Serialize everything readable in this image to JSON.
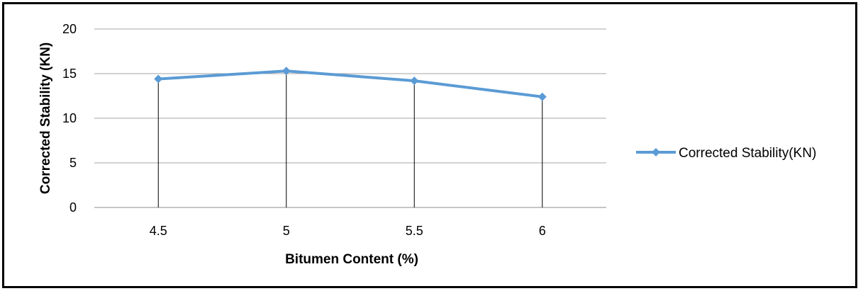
{
  "chart_data": {
    "type": "line",
    "title": "",
    "xlabel": "Bitumen Content (%)",
    "ylabel": "Corrected Stability (KN)",
    "categories": [
      "4.5",
      "5",
      "5.5",
      "6"
    ],
    "series": [
      {
        "name": "Corrected Stability(KN)",
        "values": [
          14.4,
          15.3,
          14.2,
          12.4
        ]
      }
    ],
    "yticks": [
      "0",
      "5",
      "10",
      "15",
      "20"
    ],
    "ylim": [
      0,
      20
    ],
    "grid": true,
    "drop_lines": true,
    "legend_position": "right",
    "series_color": "#5b9bd5",
    "marker": "diamond"
  }
}
